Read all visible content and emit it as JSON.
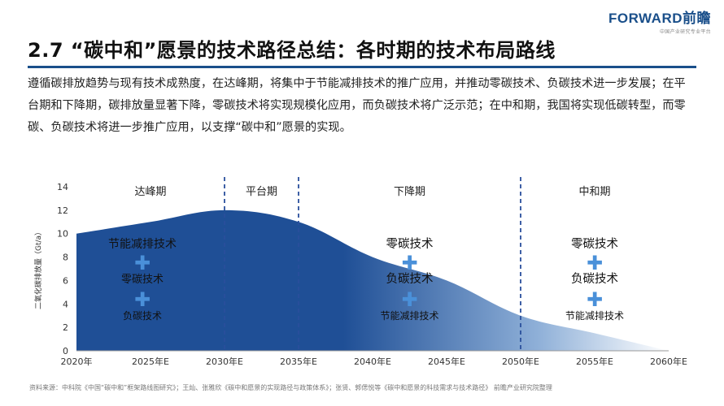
{
  "header": {
    "logo_text": "FORWARD前瞻",
    "logo_subtext": "中国产业研究专业平台"
  },
  "title": "2.7 “碳中和”愿景的技术路径总结：各时期的技术布局路线",
  "paragraph": "遵循碳排放趋势与现有技术成熟度，在达峰期，将集中于节能减排技术的推广应用，并推动零碳技术、负碳技术进一步发展；在平台期和下降期，碳排放量显著下降，零碳技术将实现规模化应用，而负碳技术将广泛示范；在中和期，我国将实现低碳转型，而零碳、负碳技术将进一步推广应用，以支撑“碳中和”愿景的实现。",
  "source_note": "资料来源：中科院《中国“碳中和”框架路线图研究》；王灿、张雅欣《碳中和愿景的实现路径与政策体系》；张贤、郭偲悦等《碳中和愿景的科技需求与技术路径》  前瞻产业研究院整理",
  "colors": {
    "accent": "#1a4f8a",
    "area_top": "#1f4f96",
    "area_bottom": "#ffffff",
    "plus": "#4a90d9",
    "divider": "#2a4f9c"
  },
  "chart_data": {
    "type": "area",
    "ylabel": "二氧化碳排放量（Gt/a）",
    "x": [
      "2020年",
      "2025年E",
      "2030年E",
      "2035年E",
      "2040年E",
      "2045年E",
      "2050年E",
      "2055年E",
      "2060年E"
    ],
    "values": [
      10,
      11,
      12,
      11,
      8,
      6,
      3,
      1.5,
      0
    ],
    "xlim": [
      2020,
      2060
    ],
    "ylim": [
      0,
      14
    ],
    "yticks": [
      "0",
      "2",
      "4",
      "6",
      "8",
      "10",
      "12",
      "14"
    ],
    "dividers": [
      2030,
      2035,
      2050
    ],
    "periods": [
      {
        "name": "达峰期",
        "from": 2020,
        "to": 2030,
        "techs": [
          "节能减排技术",
          "零碳技术",
          "负碳技术"
        ]
      },
      {
        "name": "平台期",
        "from": 2030,
        "to": 2035,
        "techs": []
      },
      {
        "name": "下降期",
        "from": 2035,
        "to": 2050,
        "techs": [
          "零碳技术",
          "负碳技术",
          "节能减排技术"
        ]
      },
      {
        "name": "中和期",
        "from": 2050,
        "to": 2060,
        "techs": [
          "零碳技术",
          "负碳技术",
          "节能减排技术"
        ]
      }
    ],
    "grid": false,
    "legend": "none"
  }
}
